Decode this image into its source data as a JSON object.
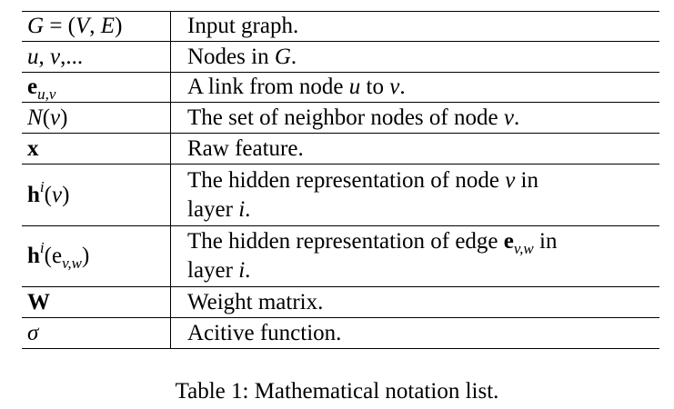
{
  "table": {
    "rows": [
      {
        "symbol": {
          "a": "G",
          "b": " = (",
          "c": "V",
          "d": ", ",
          "e": "E",
          "f": ")"
        },
        "description": "Input graph."
      },
      {
        "symbol": {
          "a": "u",
          "b": ", ",
          "c": "v",
          "d": ",..."
        },
        "description": {
          "a": "Nodes in ",
          "b": "G",
          "c": "."
        }
      },
      {
        "symbol": {
          "a": "e",
          "b": "u,v"
        },
        "description": {
          "a": "A link from node ",
          "b": "u",
          "c": " to ",
          "d": "v",
          "e": "."
        }
      },
      {
        "symbol": {
          "a": "N",
          "b": "(",
          "c": "v",
          "d": ")"
        },
        "description": {
          "a": "The set of neighbor nodes of node ",
          "b": "v",
          "c": "."
        }
      },
      {
        "symbol": {
          "a": "x"
        },
        "description": "Raw feature."
      },
      {
        "symbol": {
          "a": "h",
          "b": "i",
          "c": "(",
          "d": "v",
          "e": ")"
        },
        "description": {
          "a": "The hidden representation of node ",
          "b": "v",
          "c": " in",
          "d": "layer ",
          "e": "i",
          "f": "."
        }
      },
      {
        "symbol": {
          "a": "h",
          "b": "i",
          "c": "(e",
          "d": "v,w",
          "e": ")"
        },
        "description": {
          "a": "The hidden representation of edge ",
          "b": "e",
          "c": "v,w",
          "d": " in",
          "e": "layer ",
          "f": "i",
          "g": "."
        }
      },
      {
        "symbol": {
          "a": "W"
        },
        "description": "Weight matrix."
      },
      {
        "symbol": {
          "a": "σ"
        },
        "description": "Acitive function."
      }
    ]
  },
  "caption": "Table 1: Mathematical notation list."
}
